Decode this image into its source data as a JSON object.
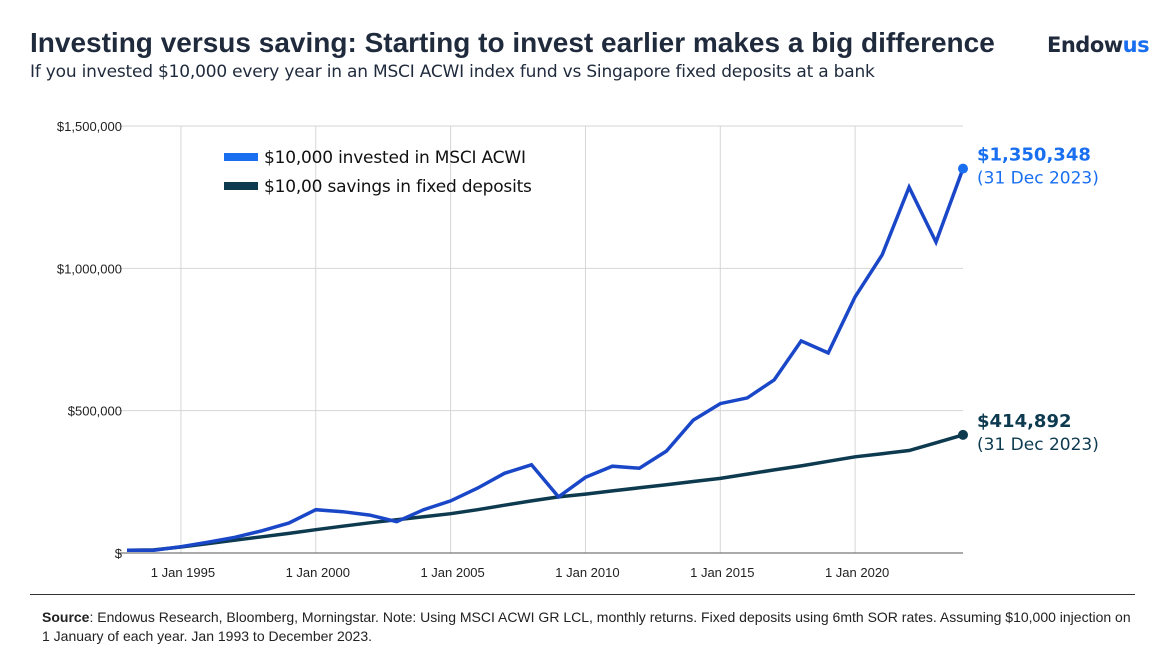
{
  "header": {
    "title": "Investing versus saving: Starting to invest earlier makes a big difference",
    "subtitle": "If you invested $10,000 every year in an MSCI ACWI index fund vs Singapore fixed deposits at a bank",
    "logo_main": "Endow",
    "logo_accent": "us"
  },
  "footer": {
    "source_label": "Source",
    "source_text": ": Endowus Research, Bloomberg, Morningstar. Note: Using MSCI ACWI GR LCL, monthly returns. Fixed deposits using 6mth SOR rates. Assuming $10,000 injection on 1 January of each year. Jan 1993 to December 2023."
  },
  "chart_data": {
    "type": "line",
    "title": "",
    "xlabel": "",
    "ylabel": "",
    "x": [
      1993,
      1994,
      1995,
      1996,
      1997,
      1998,
      1999,
      2000,
      2001,
      2002,
      2003,
      2004,
      2005,
      2006,
      2007,
      2008,
      2009,
      2010,
      2011,
      2012,
      2013,
      2014,
      2015,
      2016,
      2017,
      2018,
      2019,
      2020,
      2021,
      2022,
      2023,
      2024
    ],
    "xlim": [
      1993,
      2024
    ],
    "ylim": [
      0,
      1500000
    ],
    "grid": true,
    "legend_position": "top-left",
    "x_ticks": [
      {
        "value": 1995,
        "label": "1 Jan 1995"
      },
      {
        "value": 2000,
        "label": "1 Jan 2000"
      },
      {
        "value": 2005,
        "label": "1 Jan 2005"
      },
      {
        "value": 2010,
        "label": "1 Jan 2010"
      },
      {
        "value": 2015,
        "label": "1 Jan 2015"
      },
      {
        "value": 2020,
        "label": "1 Jan 2020"
      }
    ],
    "y_ticks": [
      {
        "value": 0,
        "label": "$"
      },
      {
        "value": 500000,
        "label": "$500,000"
      },
      {
        "value": 1000000,
        "label": "$1,000,000"
      },
      {
        "value": 1500000,
        "label": "$1,500,000"
      }
    ],
    "series": [
      {
        "name": "$10,000 invested in MSCI ACWI",
        "color": "#1a47c8",
        "legend_color": "#1a6ff0",
        "label_color": "#1a6ff0",
        "values": [
          10000,
          10000,
          22000,
          38000,
          55000,
          78000,
          105000,
          152000,
          145000,
          133000,
          110000,
          152000,
          183000,
          228000,
          280000,
          310000,
          197000,
          266000,
          305000,
          298000,
          358000,
          467000,
          525000,
          545000,
          608000,
          745000,
          703000,
          900000,
          1047000,
          1285000,
          1092000,
          1350348
        ],
        "end_label": "$1,350,348",
        "end_date": "(31 Dec 2023)"
      },
      {
        "name": "$10,00 savings in fixed deposits",
        "color": "#0d3a4f",
        "legend_color": "#0d3a4f",
        "label_color": "#0d3a4f",
        "values": [
          10000,
          11000,
          21000,
          33000,
          45000,
          57000,
          69000,
          82000,
          94000,
          106000,
          117000,
          127000,
          138000,
          152000,
          168000,
          183000,
          197000,
          207000,
          218000,
          229000,
          240000,
          251000,
          262000,
          277000,
          292000,
          306000,
          322000,
          338000,
          349000,
          360000,
          387000,
          414892
        ],
        "end_label": "$414,892",
        "end_date": "(31 Dec 2023)"
      }
    ]
  }
}
